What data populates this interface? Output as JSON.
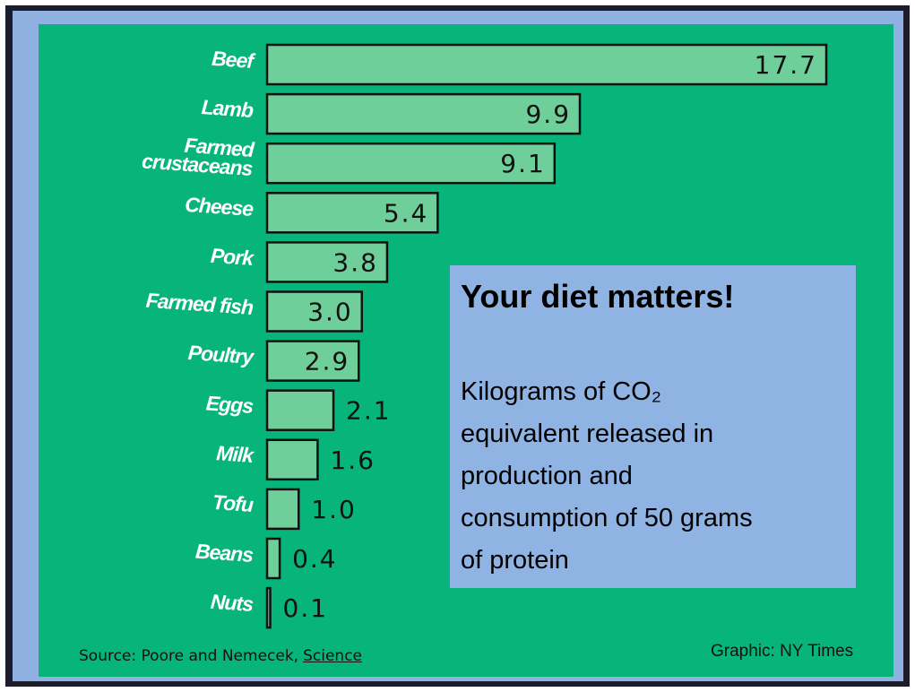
{
  "chart_data": {
    "type": "bar",
    "orientation": "horizontal",
    "title": "Your diet matters!",
    "subtitle": "Kilograms of CO₂ equivalent released in production and consumption of 50 grams of protein",
    "categories": [
      "Beef",
      "Lamb",
      "Farmed crustaceans",
      "Cheese",
      "Pork",
      "Farmed fish",
      "Poultry",
      "Eggs",
      "Milk",
      "Tofu",
      "Beans",
      "Nuts"
    ],
    "values": [
      17.7,
      9.9,
      9.1,
      5.4,
      3.8,
      3.0,
      2.9,
      2.1,
      1.6,
      1.0,
      0.4,
      0.1
    ],
    "value_labels": [
      "17.7",
      "9.9",
      "9.1",
      "5.4",
      "3.8",
      "3.0",
      "2.9",
      "2.1",
      "1.6",
      "1.0",
      "0.4",
      "0.1"
    ],
    "color": "#6fcf9a",
    "source": "Source: Poore and Nemecek,",
    "source_link": "Science",
    "credit": "Graphic: NY Times"
  }
}
